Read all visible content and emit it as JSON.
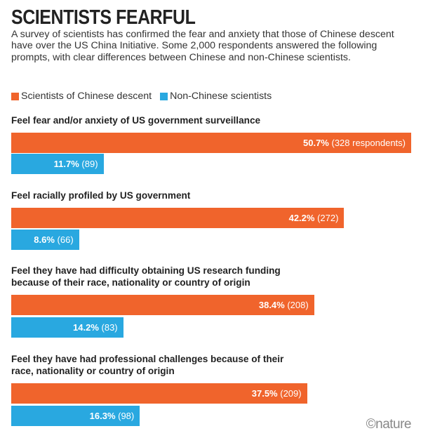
{
  "chart_data": {
    "type": "bar",
    "orientation": "horizontal",
    "title": "SCIENTISTS FEARFUL",
    "subtitle": "A survey of scientists has confirmed the fear and anxiety that those of Chinese descent have over the US China Initiative. Some 2,000 respondents answered the following prompts, with clear differences between Chinese and non-Chinese scientists.",
    "legend_placement": "top-left",
    "grid": false,
    "xlim": [
      0,
      52
    ],
    "categories": [
      "Feel fear and/or anxiety of US government surveillance",
      "Feel racially profiled by US government",
      "Feel they have had difficulty obtaining US research funding because of their race, nationality or country of origin",
      "Feel they have had professional challenges because of their race, nationality or country of origin"
    ],
    "series": [
      {
        "name": "Scientists of Chinese descent",
        "color": "#f0642c",
        "values": [
          50.7,
          42.2,
          38.4,
          37.5
        ],
        "value_labels": [
          "50.7%",
          "42.2%",
          "38.4%",
          "37.5%"
        ],
        "count_labels": [
          "(328 respondents)",
          "(272)",
          "(208)",
          "(209)"
        ]
      },
      {
        "name": "Non-Chinese scientists",
        "color": "#29a8e0",
        "values": [
          11.7,
          8.6,
          14.2,
          16.3
        ],
        "value_labels": [
          "11.7%",
          "8.6%",
          "14.2%",
          "16.3%"
        ],
        "count_labels": [
          "(89)",
          "(66)",
          "(83)",
          "(98)"
        ]
      }
    ]
  },
  "credit": "©nature"
}
